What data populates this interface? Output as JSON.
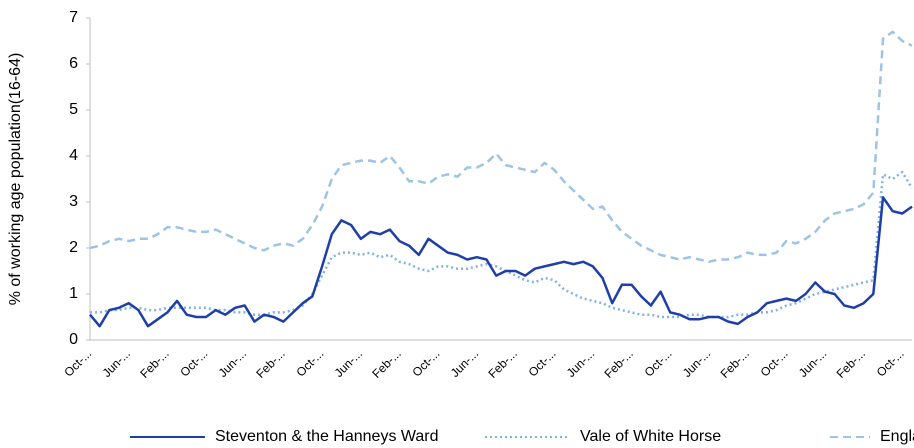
{
  "chart_data": {
    "type": "line",
    "y_label": "% of working age population(16-64)",
    "categories": [
      "Oct-...",
      null,
      null,
      null,
      "Jun-...",
      null,
      null,
      null,
      "Feb-...",
      null,
      null,
      null,
      "Oct-...",
      null,
      null,
      null,
      "Jun-...",
      null,
      null,
      null,
      "Feb-...",
      null,
      null,
      null,
      "Oct-...",
      null,
      null,
      null,
      "Jun-...",
      null,
      null,
      null,
      "Feb-...",
      null,
      null,
      null,
      "Oct-...",
      null,
      null,
      null,
      "Jun-...",
      null,
      null,
      null,
      "Feb-...",
      null,
      null,
      null,
      "Oct-...",
      null,
      null,
      null,
      "Jun-...",
      null,
      null,
      null,
      "Feb-...",
      null,
      null,
      null,
      "Oct-...",
      null,
      null,
      null,
      "Jun-...",
      null,
      null,
      null,
      "Feb-...",
      null,
      null,
      null,
      "Oct-...",
      null,
      null,
      null,
      "Jun-...",
      null,
      null,
      null,
      "Feb-...",
      null,
      null,
      null,
      "Oct-...",
      null
    ],
    "series": [
      {
        "name": "Steventon & the Hanneys Ward",
        "color": "#1f3fa8",
        "style": "solid",
        "values": [
          0.55,
          0.3,
          0.65,
          0.7,
          0.8,
          0.65,
          0.3,
          0.45,
          0.6,
          0.85,
          0.55,
          0.5,
          0.5,
          0.65,
          0.55,
          0.7,
          0.75,
          0.4,
          0.55,
          0.5,
          0.4,
          0.6,
          0.8,
          0.95,
          1.6,
          2.3,
          2.6,
          2.5,
          2.2,
          2.35,
          2.3,
          2.4,
          2.15,
          2.05,
          1.85,
          2.2,
          2.05,
          1.9,
          1.85,
          1.75,
          1.8,
          1.75,
          1.4,
          1.5,
          1.5,
          1.4,
          1.55,
          1.6,
          1.65,
          1.7,
          1.65,
          1.7,
          1.6,
          1.35,
          0.8,
          1.2,
          1.2,
          0.95,
          0.75,
          1.05,
          0.6,
          0.55,
          0.45,
          0.45,
          0.5,
          0.5,
          0.4,
          0.35,
          0.5,
          0.6,
          0.8,
          0.85,
          0.9,
          0.85,
          1.0,
          1.25,
          1.05,
          1.0,
          0.75,
          0.7,
          0.8,
          1.0,
          3.1,
          2.8,
          2.75,
          2.9
        ]
      },
      {
        "name": "Vale of White Horse",
        "color": "#7fb2e5",
        "style": "dotted",
        "values": [
          0.6,
          0.6,
          0.65,
          0.65,
          0.7,
          0.7,
          0.65,
          0.65,
          0.7,
          0.7,
          0.7,
          0.7,
          0.7,
          0.65,
          0.65,
          0.6,
          0.6,
          0.55,
          0.55,
          0.6,
          0.6,
          0.65,
          0.75,
          1.0,
          1.4,
          1.8,
          1.9,
          1.9,
          1.85,
          1.9,
          1.8,
          1.85,
          1.7,
          1.65,
          1.55,
          1.5,
          1.6,
          1.6,
          1.55,
          1.55,
          1.6,
          1.65,
          1.6,
          1.5,
          1.4,
          1.3,
          1.25,
          1.35,
          1.3,
          1.1,
          1.0,
          0.9,
          0.85,
          0.8,
          0.7,
          0.65,
          0.6,
          0.55,
          0.55,
          0.5,
          0.5,
          0.5,
          0.55,
          0.55,
          0.5,
          0.5,
          0.5,
          0.55,
          0.55,
          0.6,
          0.6,
          0.65,
          0.75,
          0.8,
          0.9,
          1.0,
          1.05,
          1.1,
          1.15,
          1.2,
          1.25,
          1.3,
          3.6,
          3.5,
          3.65,
          3.3
        ]
      },
      {
        "name": "England",
        "color": "#9dc3e6",
        "style": "dashed",
        "values": [
          2.0,
          2.05,
          2.15,
          2.2,
          2.15,
          2.2,
          2.2,
          2.3,
          2.45,
          2.45,
          2.4,
          2.35,
          2.35,
          2.4,
          2.3,
          2.2,
          2.1,
          2.0,
          1.95,
          2.05,
          2.1,
          2.05,
          2.2,
          2.5,
          2.9,
          3.5,
          3.8,
          3.85,
          3.9,
          3.9,
          3.85,
          4.0,
          3.75,
          3.45,
          3.45,
          3.4,
          3.55,
          3.6,
          3.55,
          3.75,
          3.75,
          3.85,
          4.05,
          3.8,
          3.75,
          3.7,
          3.65,
          3.85,
          3.7,
          3.45,
          3.25,
          3.05,
          2.85,
          2.9,
          2.6,
          2.35,
          2.2,
          2.05,
          1.95,
          1.85,
          1.8,
          1.75,
          1.8,
          1.75,
          1.7,
          1.75,
          1.75,
          1.8,
          1.9,
          1.85,
          1.85,
          1.9,
          2.15,
          2.1,
          2.2,
          2.35,
          2.6,
          2.75,
          2.8,
          2.85,
          2.95,
          3.2,
          6.55,
          6.7,
          6.5,
          6.4
        ]
      }
    ],
    "ylim": [
      0,
      7
    ],
    "yticks": [
      0,
      1,
      2,
      3,
      4,
      5,
      6,
      7
    ],
    "grid": false,
    "legend": "bottom"
  }
}
